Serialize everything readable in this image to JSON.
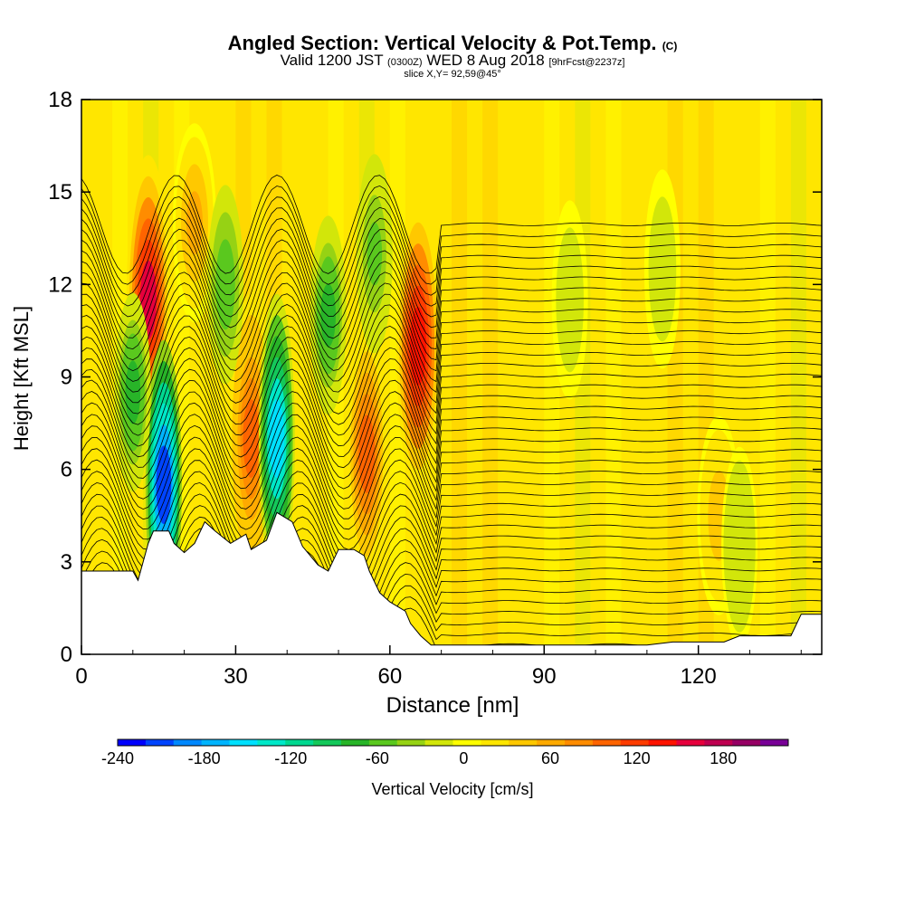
{
  "header": {
    "title_main": "Angled Section: Vertical Velocity & Pot.Temp.",
    "title_unit": "(C)",
    "valid_prefix": "Valid 1200 JST",
    "valid_z": "(0300Z)",
    "valid_date": "WED 8 Aug 2018",
    "forecast": "[9hrFcst@2237z]",
    "slice": "slice X,Y= 92,59@45°"
  },
  "chart_data": {
    "type": "heatmap",
    "title": "Angled Section: Vertical Velocity & Pot.Temp. (C)",
    "xlabel": "Distance [nm]",
    "ylabel": "Height [Kft MSL]",
    "xlim": [
      0,
      144
    ],
    "ylim": [
      0,
      18
    ],
    "x_ticks": [
      "0",
      "30",
      "60",
      "90",
      "120"
    ],
    "y_ticks": [
      "0",
      "3",
      "6",
      "9",
      "12",
      "15",
      "18"
    ],
    "colorbar": {
      "label": "Vertical Velocity [cm/s]",
      "ticks": [
        "-240",
        "-180",
        "-120",
        "-60",
        "0",
        "60",
        "120",
        "180"
      ],
      "range": [
        -240,
        225
      ],
      "colors": [
        "#0000ff",
        "#0044ff",
        "#0088ff",
        "#00b4ff",
        "#00e0ff",
        "#00e8c8",
        "#00d890",
        "#14c85a",
        "#28b428",
        "#5ac81e",
        "#96d214",
        "#d2e60a",
        "#ffff00",
        "#ffe600",
        "#ffc800",
        "#ffaa00",
        "#ff8c00",
        "#ff6400",
        "#ff3c00",
        "#ff1400",
        "#e6003c",
        "#be0050",
        "#960064",
        "#780096"
      ]
    },
    "terrain_kft": [
      [
        0,
        2.7
      ],
      [
        5,
        2.7
      ],
      [
        10,
        2.7
      ],
      [
        11,
        2.4
      ],
      [
        12,
        3.0
      ],
      [
        13,
        3.6
      ],
      [
        14,
        4.0
      ],
      [
        17,
        4.0
      ],
      [
        18,
        3.6
      ],
      [
        20,
        3.3
      ],
      [
        22,
        3.6
      ],
      [
        24,
        4.3
      ],
      [
        26,
        4.0
      ],
      [
        29,
        3.6
      ],
      [
        32,
        3.9
      ],
      [
        33,
        3.4
      ],
      [
        36,
        3.7
      ],
      [
        38,
        4.6
      ],
      [
        41,
        4.3
      ],
      [
        43,
        3.5
      ],
      [
        46,
        2.9
      ],
      [
        48,
        2.7
      ],
      [
        50,
        3.4
      ],
      [
        53,
        3.4
      ],
      [
        55,
        3.2
      ],
      [
        56,
        2.7
      ],
      [
        58,
        2.0
      ],
      [
        60,
        1.7
      ],
      [
        63,
        1.4
      ],
      [
        64,
        1.0
      ],
      [
        66,
        0.6
      ],
      [
        68,
        0.3
      ],
      [
        85,
        0.3
      ],
      [
        110,
        0.3
      ],
      [
        115,
        0.4
      ],
      [
        125,
        0.4
      ],
      [
        128,
        0.6
      ],
      [
        138,
        0.6
      ],
      [
        140,
        1.3
      ],
      [
        144,
        1.3
      ]
    ],
    "updrafts_cm_s": [
      {
        "x": 13.0,
        "y": 11.5,
        "value": 150
      },
      {
        "x": 33.0,
        "y": 7.0,
        "value": 95
      },
      {
        "x": 55.5,
        "y": 6.5,
        "value": 90
      },
      {
        "x": 65.5,
        "y": 10.0,
        "value": 140
      },
      {
        "x": 22.0,
        "y": 14.0,
        "value": 60
      },
      {
        "x": 124.0,
        "y": 4.5,
        "value": 45
      }
    ],
    "downdrafts_cm_s": [
      {
        "x": 16.0,
        "y": 5.5,
        "value": -210
      },
      {
        "x": 38.0,
        "y": 7.0,
        "value": -150
      },
      {
        "x": 10.0,
        "y": 8.5,
        "value": -70
      },
      {
        "x": 28.0,
        "y": 12.0,
        "value": -60
      },
      {
        "x": 48.0,
        "y": 11.0,
        "value": -70
      },
      {
        "x": 57.0,
        "y": 13.0,
        "value": -50
      },
      {
        "x": 95.0,
        "y": 11.5,
        "value": -20
      },
      {
        "x": 113.0,
        "y": 12.5,
        "value": -20
      },
      {
        "x": 128.0,
        "y": 3.5,
        "value": -25
      }
    ]
  }
}
